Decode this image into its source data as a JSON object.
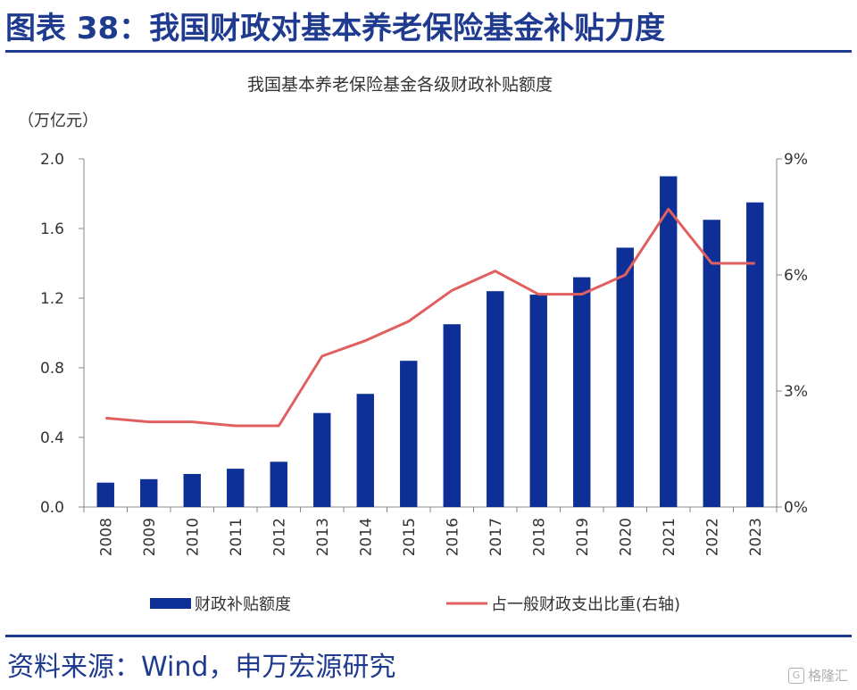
{
  "figure": {
    "title": "图表 38：我国财政对基本养老保险基金补贴力度",
    "source": "资料来源：Wind，申万宏源研究",
    "watermark": "格隆汇"
  },
  "colors": {
    "title": "#1f3b8f",
    "bar": "#0d2f96",
    "line": "#e06060",
    "axis": "#888888",
    "text": "#333333"
  },
  "chart_data": {
    "type": "bar",
    "title": "我国基本养老保险基金各级财政补贴额度",
    "unit_label": "（万亿元）",
    "categories": [
      "2008",
      "2009",
      "2010",
      "2011",
      "2012",
      "2013",
      "2014",
      "2015",
      "2016",
      "2017",
      "2018",
      "2019",
      "2020",
      "2021",
      "2022",
      "2023"
    ],
    "series": [
      {
        "name": "财政补贴额度",
        "type": "bar",
        "axis": "left",
        "values": [
          0.14,
          0.16,
          0.19,
          0.22,
          0.26,
          0.54,
          0.65,
          0.84,
          1.05,
          1.24,
          1.22,
          1.32,
          1.49,
          1.9,
          1.65,
          1.75
        ]
      },
      {
        "name": "占一般财政支出比重(右轴)",
        "type": "line",
        "axis": "right",
        "values": [
          2.3,
          2.2,
          2.2,
          2.1,
          2.1,
          3.9,
          4.3,
          4.8,
          5.6,
          6.1,
          5.5,
          5.5,
          6.0,
          7.7,
          6.3,
          6.3
        ]
      }
    ],
    "y_left": {
      "min": 0,
      "max": 2.0,
      "ticks": [
        "0.0",
        "0.4",
        "0.8",
        "1.2",
        "1.6",
        "2.0"
      ]
    },
    "y_right": {
      "min": 0,
      "max": 9,
      "ticks": [
        "0%",
        "3%",
        "6%",
        "9%"
      ]
    },
    "grid": false,
    "legend_position": "bottom"
  }
}
